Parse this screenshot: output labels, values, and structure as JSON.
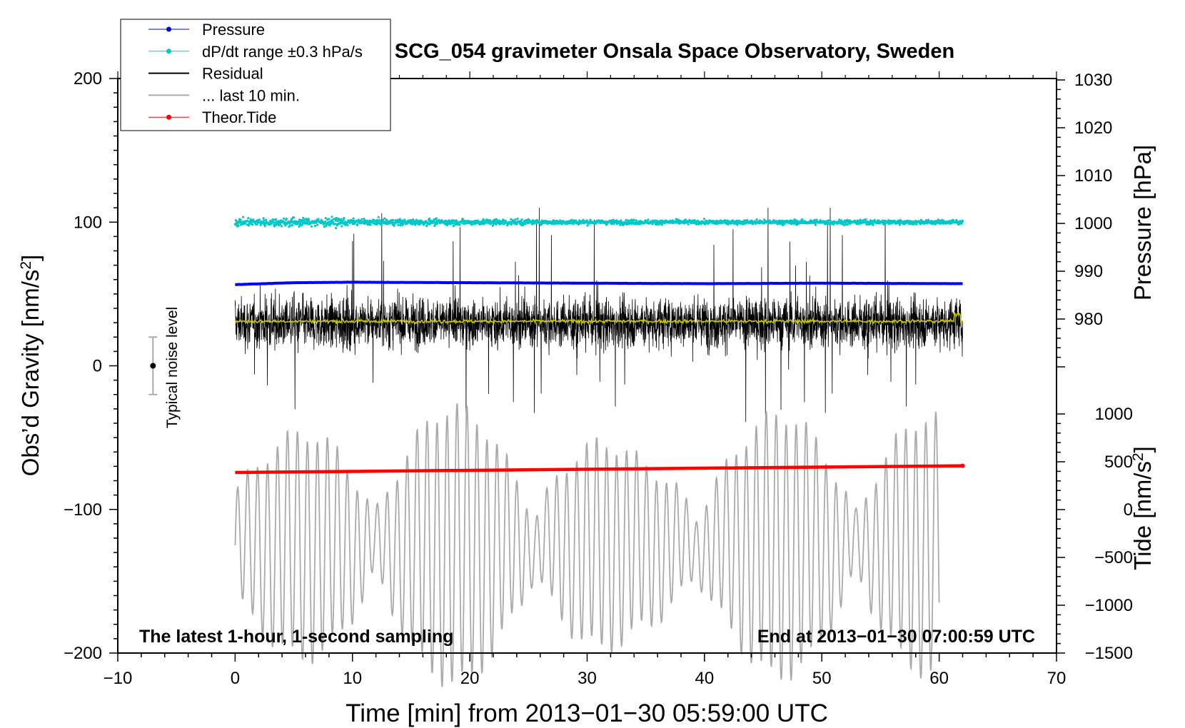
{
  "chart_data": {
    "type": "line",
    "title": "SCG_054 gravimeter Onsala Space Observatory, Sweden",
    "xlabel": "Time [min] from 2013−01−30 05:59:00 UTC",
    "ylabel": "Obs’d Gravity [nm/s²]",
    "ylabel_parts": {
      "main": "Obs’d Gravity [nm/s",
      "sup": "2",
      "end": "]"
    },
    "xlim": [
      -10,
      70
    ],
    "ylim": [
      -200,
      200
    ],
    "xticks": [
      -10,
      0,
      10,
      20,
      30,
      40,
      50,
      60,
      70
    ],
    "xtick_labels": [
      "−10",
      "0",
      "10",
      "20",
      "30",
      "40",
      "50",
      "60",
      "70"
    ],
    "yticks": [
      -200,
      -100,
      0,
      100,
      200
    ],
    "ytick_labels": [
      "−200",
      "−100",
      "0",
      "100",
      "200"
    ],
    "pressure_axis": {
      "label": "Pressure [hPa]",
      "range": [
        970,
        1030
      ],
      "ticks": [
        980,
        990,
        1000,
        1010,
        1020,
        1030
      ],
      "tick_labels": [
        "980",
        "990",
        "1000",
        "1010",
        "1020",
        "1030"
      ]
    },
    "tide_axis": {
      "label": "Tide [nm/s²]",
      "label_parts": {
        "main": "Tide [nm/s",
        "sup": "2",
        "end": "]"
      },
      "range": [
        -1500,
        1000
      ],
      "ticks": [
        -1500,
        -1000,
        -500,
        0,
        500,
        1000
      ],
      "tick_labels": [
        "−1500",
        "−1000",
        "−500",
        "0",
        "500",
        "1000"
      ]
    },
    "legend": {
      "placement": "top-left",
      "entries": [
        {
          "label": "Pressure",
          "color": "#0000cc",
          "marker": "dot"
        },
        {
          "label": "dP/dt range ±0.3 hPa/s",
          "color": "#00c8c8",
          "marker": "dot"
        },
        {
          "label": "Residual",
          "color": "#000000",
          "marker": "none"
        },
        {
          "label": "... last 10 min.",
          "color": "#aaaaaa",
          "marker": "none"
        },
        {
          "label": "Theor.Tide",
          "color": "#ff0000",
          "marker": "dot"
        }
      ]
    },
    "series": [
      {
        "name": "Pressure",
        "color": "#0000ff",
        "axis": "pressure",
        "x": [
          0,
          5,
          10,
          20,
          30,
          40,
          50,
          62
        ],
        "values": [
          987.2,
          987.6,
          987.7,
          987.6,
          987.5,
          987.4,
          987.5,
          987.4
        ]
      },
      {
        "name": "dP/dt",
        "color": "#00c8c8",
        "axis": "left",
        "x_range": [
          0,
          62
        ],
        "level": 100,
        "spread": 6
      },
      {
        "name": "Residual",
        "color": "#000000",
        "axis": "left",
        "x_range": [
          0,
          62
        ],
        "level": 30,
        "envelope": [
          -55,
          110
        ]
      },
      {
        "name": "Residual smoothed",
        "color": "#c8c800",
        "axis": "left",
        "x_range": [
          0,
          62
        ],
        "level": 31
      },
      {
        "name": "... last 10 min.",
        "color": "#aaaaaa",
        "axis": "left",
        "x_range": [
          0,
          60
        ],
        "center": -125,
        "amplitude_max": 75,
        "period_min": 0.85
      },
      {
        "name": "Theor.Tide",
        "color": "#ff0000",
        "axis": "tide",
        "x": [
          0,
          62
        ],
        "values": [
          388,
          458
        ]
      }
    ],
    "noise_bar": {
      "label": "Typical noise level",
      "x": -7,
      "center": 0,
      "half_range": 20
    },
    "annotations": {
      "bottom_left": "The latest 1-hour, 1-second sampling",
      "bottom_right": "End at 2013−01−30 07:00:59 UTC"
    }
  }
}
